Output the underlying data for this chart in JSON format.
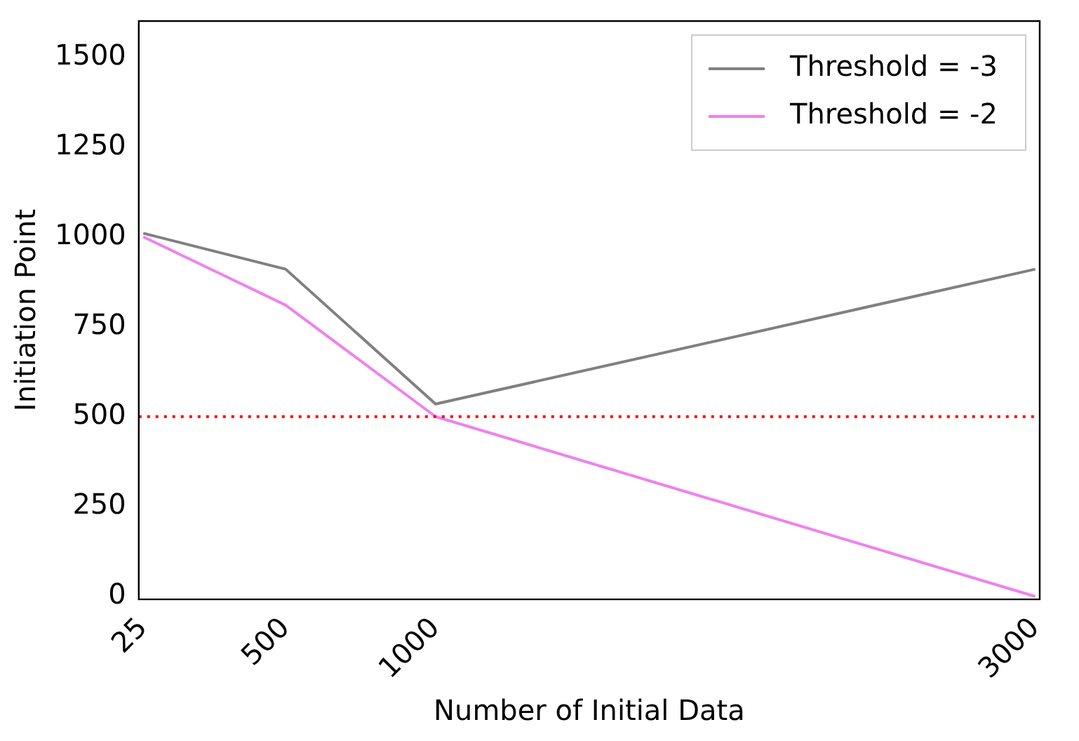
{
  "chart_data": {
    "type": "line",
    "xlabel": "Number of Initial Data",
    "ylabel": "Initiation Point",
    "x": [
      25,
      500,
      1000,
      3000
    ],
    "series": [
      {
        "name": "Threshold = -3",
        "color": "#808080",
        "values": [
          1010,
          910,
          535,
          910
        ]
      },
      {
        "name": "Threshold = -2",
        "color": "#ee82ee",
        "values": [
          1000,
          810,
          500,
          0
        ]
      }
    ],
    "xlim": [
      10,
      3015
    ],
    "xticks": [
      25,
      500,
      1000,
      3000
    ],
    "ylim": [
      -8,
      1600
    ],
    "yticks": [
      0,
      250,
      500,
      750,
      1000,
      1250,
      1500
    ],
    "ref_lines": [
      {
        "axis": "y",
        "value": 500,
        "color": "#ff0000",
        "line_style": "dotted"
      }
    ],
    "legend": "top right",
    "grid": false,
    "marker": "none",
    "line_style": "solid"
  }
}
